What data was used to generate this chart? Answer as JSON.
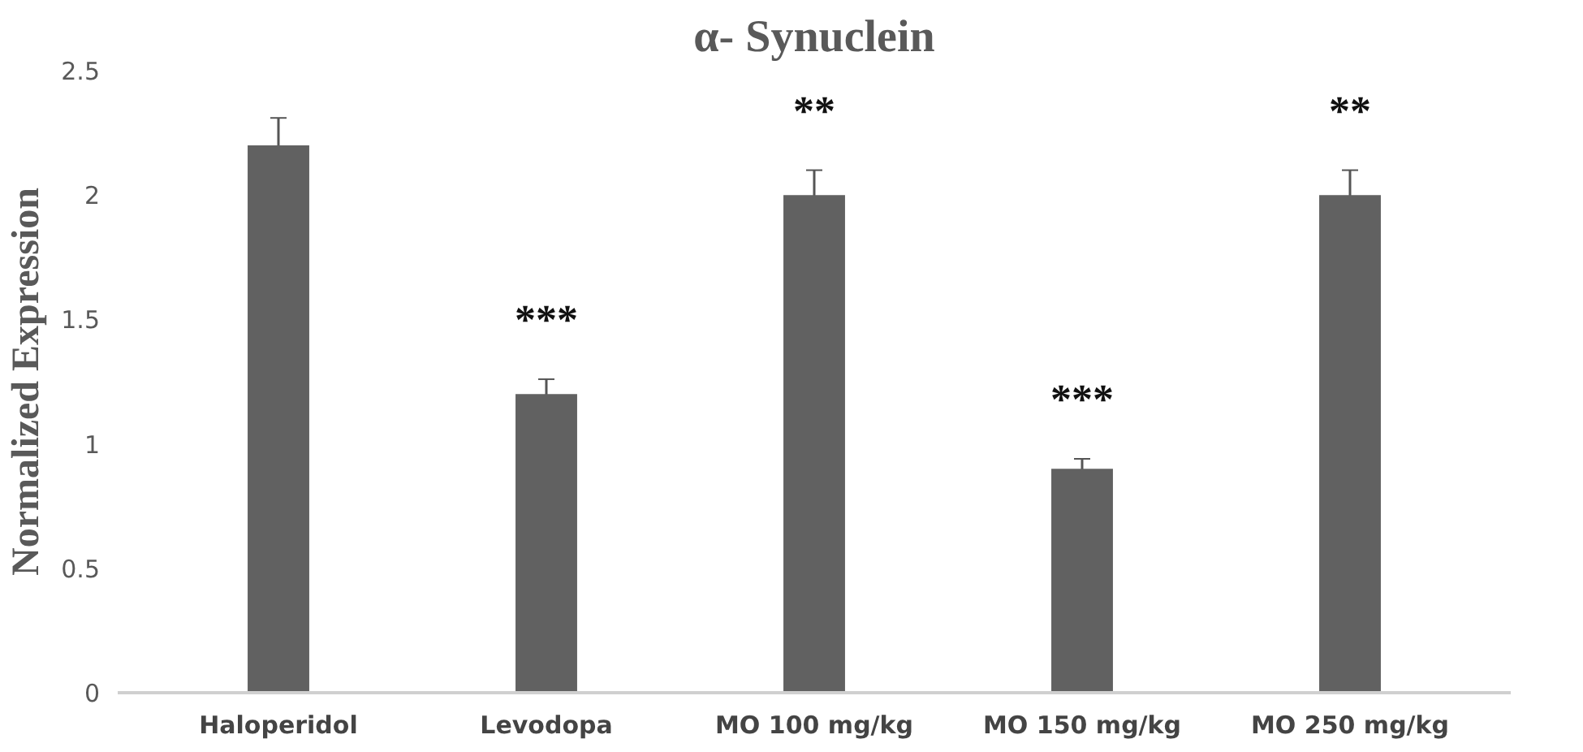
{
  "chart_data": {
    "type": "bar",
    "title": "α- Synuclein",
    "ylabel": "Normalized Expression",
    "categories": [
      "Haloperidol",
      "Levodopa",
      "MO 100 mg/kg",
      "MO 150 mg/kg",
      "MO 250 mg/kg"
    ],
    "values": [
      2.2,
      1.2,
      2.0,
      0.9,
      2.0
    ],
    "errors": [
      0.11,
      0.06,
      0.1,
      0.04,
      0.1
    ],
    "color": "#616161",
    "ylim": [
      0,
      2.5
    ],
    "yticks": [
      0,
      0.5,
      1,
      1.5,
      2,
      2.5
    ],
    "grid": false,
    "annotations": [
      {
        "text": "***",
        "x": "Levodopa",
        "y": 1.26
      },
      {
        "text": "**",
        "x": "MO 100 mg/kg",
        "y": 2.1
      },
      {
        "text": "***",
        "x": "MO 150 mg/kg",
        "y": 0.94
      },
      {
        "text": "**",
        "x": "MO 250 mg/kg",
        "y": 2.1
      }
    ]
  }
}
